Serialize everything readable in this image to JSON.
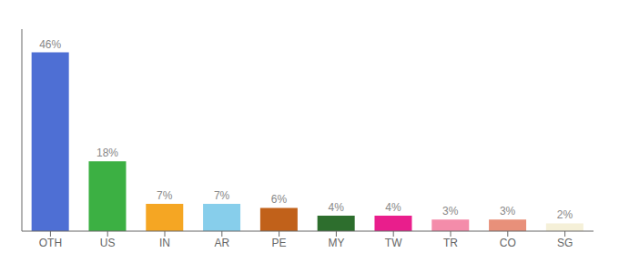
{
  "chart_data": {
    "type": "bar",
    "categories": [
      "OTH",
      "US",
      "IN",
      "AR",
      "PE",
      "MY",
      "TW",
      "TR",
      "CO",
      "SG"
    ],
    "values": [
      46,
      18,
      7,
      7,
      6,
      4,
      4,
      3,
      3,
      2
    ],
    "value_labels": [
      "46%",
      "18%",
      "7%",
      "7%",
      "6%",
      "4%",
      "4%",
      "3%",
      "3%",
      "2%"
    ],
    "colors": [
      "#4e6fd4",
      "#3cb043",
      "#f5a623",
      "#87ceeb",
      "#c1611a",
      "#2d6e2d",
      "#e91e8c",
      "#f48caa",
      "#e8907a",
      "#f5f0d8"
    ],
    "ylim": [
      0,
      52
    ],
    "data_labels": true,
    "tick_labels": "x",
    "grid": false
  }
}
